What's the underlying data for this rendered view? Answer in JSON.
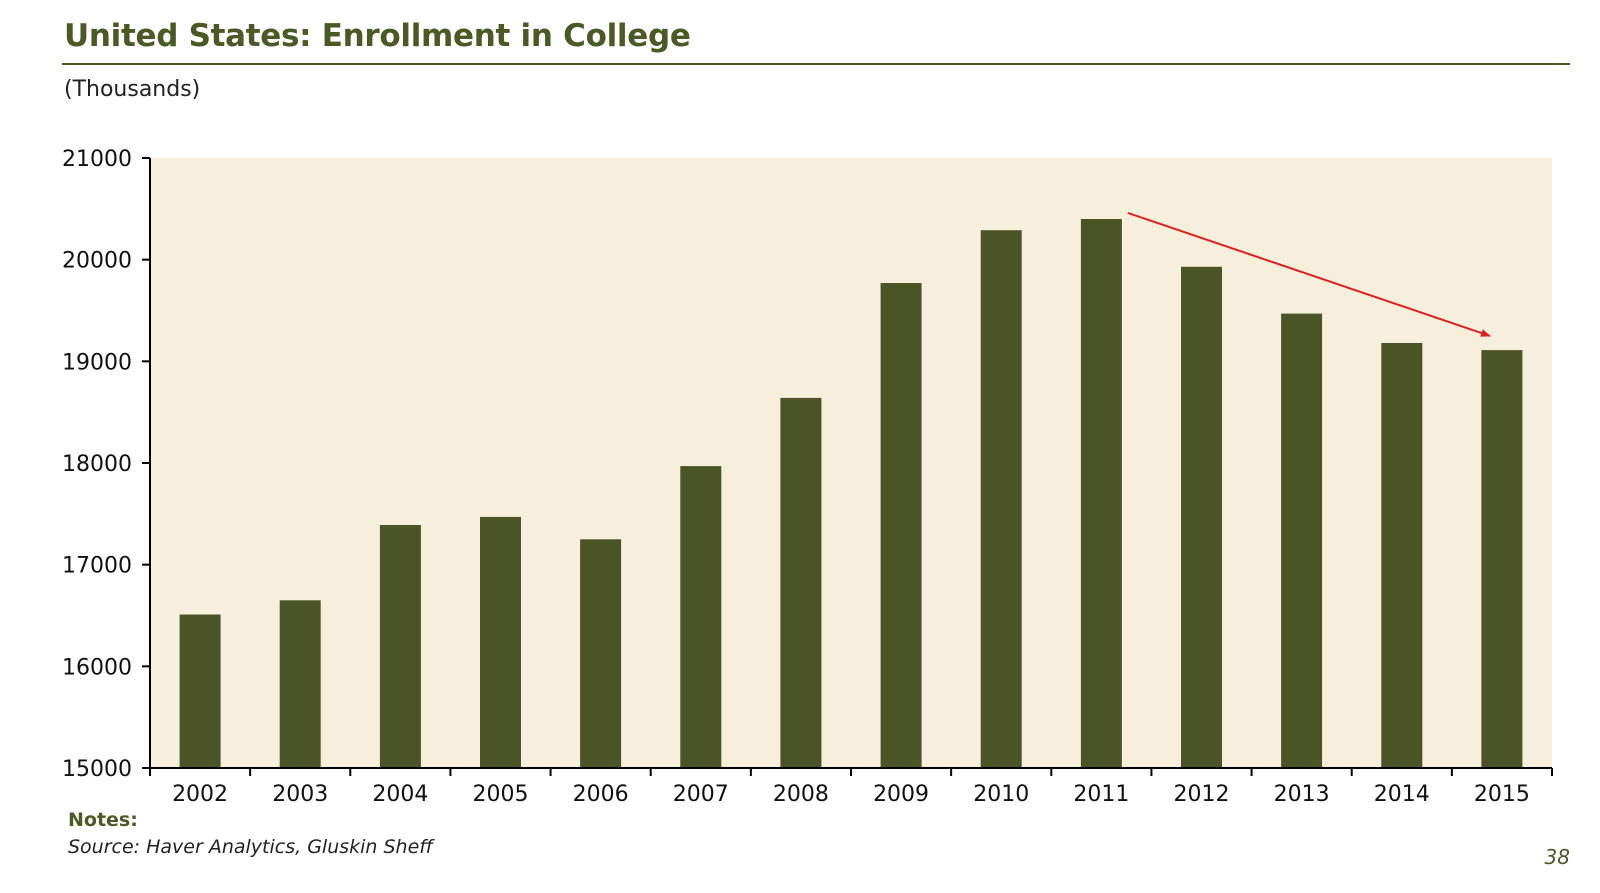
{
  "header": {
    "title": "United States: Enrollment in College",
    "subtitle": "(Thousands)"
  },
  "footer": {
    "notes_label": "Notes:",
    "source": "Source: Haver Analytics, Gluskin Sheff",
    "page_number": "38"
  },
  "colors": {
    "bar": "#4b5427",
    "plot_background": "#f5efdc",
    "title": "#4a5a24",
    "arrow": "#e02020"
  },
  "chart_data": {
    "type": "bar",
    "title": "United States: Enrollment in College",
    "subtitle": "(Thousands)",
    "xlabel": "",
    "ylabel": "",
    "categories": [
      "2002",
      "2003",
      "2004",
      "2005",
      "2006",
      "2007",
      "2008",
      "2009",
      "2010",
      "2011",
      "2012",
      "2013",
      "2014",
      "2015"
    ],
    "values": [
      16510,
      16650,
      17390,
      17470,
      17250,
      17970,
      18640,
      19770,
      20290,
      20400,
      19930,
      19470,
      19180,
      19110
    ],
    "ylim": [
      15000,
      21000
    ],
    "yticks": [
      15000,
      16000,
      17000,
      18000,
      19000,
      20000,
      21000
    ],
    "grid": false,
    "legend": "none",
    "annotation": {
      "type": "arrow",
      "description": "downward trend arrow",
      "from": {
        "x": "2011",
        "y": 20460
      },
      "to": {
        "x": "2015",
        "y": 19250
      }
    }
  }
}
